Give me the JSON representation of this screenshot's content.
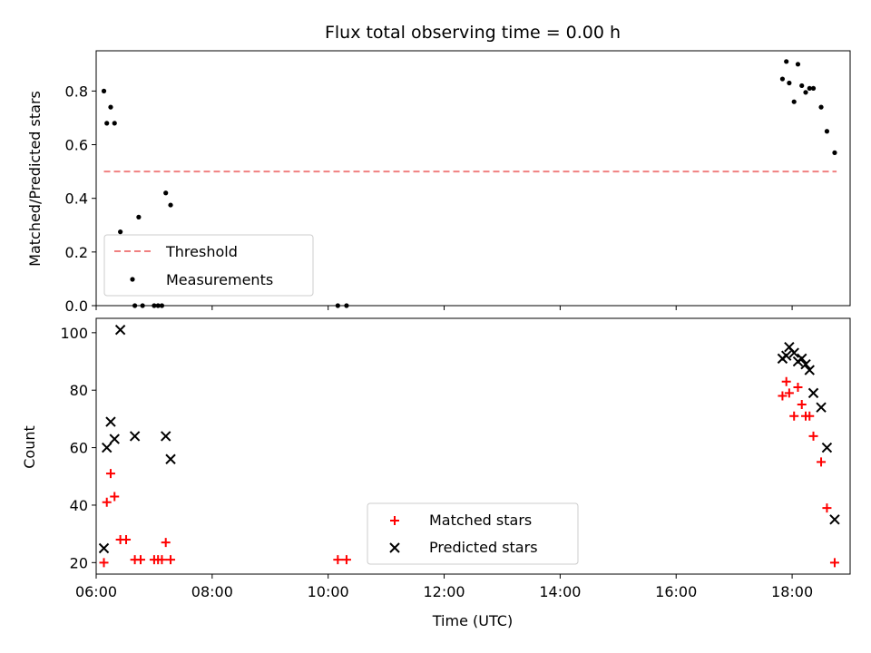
{
  "chart_data": [
    {
      "type": "scatter",
      "title": "Flux total observing time = 0.00 h",
      "xlabel": "",
      "ylabel": "Matched/Predicted stars",
      "xlim": [
        "06:00",
        "19:00"
      ],
      "ylim": [
        0,
        0.95
      ],
      "yticks": [
        "0.0",
        "0.2",
        "0.4",
        "0.6",
        "0.8"
      ],
      "legend_position": "lower-left",
      "series": [
        {
          "name": "Threshold",
          "style": "dashed-line",
          "color": "#f08080",
          "x": [
            "06:08",
            "18:46"
          ],
          "y": [
            0.5,
            0.5
          ]
        },
        {
          "name": "Measurements",
          "style": "dot",
          "color": "#000000",
          "points": [
            [
              "06:08",
              0.8
            ],
            [
              "06:11",
              0.68
            ],
            [
              "06:15",
              0.74
            ],
            [
              "06:19",
              0.68
            ],
            [
              "06:25",
              0.275
            ],
            [
              "06:40",
              0.0
            ],
            [
              "06:44",
              0.33
            ],
            [
              "06:48",
              0.0
            ],
            [
              "07:00",
              0.0
            ],
            [
              "07:04",
              0.0
            ],
            [
              "07:08",
              0.0
            ],
            [
              "07:12",
              0.42
            ],
            [
              "07:17",
              0.375
            ],
            [
              "10:10",
              0.0
            ],
            [
              "10:19",
              0.0
            ],
            [
              "17:50",
              0.845
            ],
            [
              "17:54",
              0.91
            ],
            [
              "17:57",
              0.83
            ],
            [
              "18:02",
              0.76
            ],
            [
              "18:06",
              0.9
            ],
            [
              "18:10",
              0.82
            ],
            [
              "18:14",
              0.795
            ],
            [
              "18:18",
              0.81
            ],
            [
              "18:22",
              0.81
            ],
            [
              "18:30",
              0.74
            ],
            [
              "18:36",
              0.65
            ],
            [
              "18:44",
              0.57
            ]
          ]
        }
      ]
    },
    {
      "type": "scatter",
      "title": "",
      "xlabel": "Time (UTC)",
      "ylabel": "Count",
      "xlim": [
        "06:00",
        "19:00"
      ],
      "ylim": [
        16,
        105
      ],
      "xticks": [
        "06:00",
        "08:00",
        "10:00",
        "12:00",
        "14:00",
        "16:00",
        "18:00"
      ],
      "yticks": [
        "20",
        "40",
        "60",
        "80",
        "100"
      ],
      "legend_position": "lower-center",
      "series": [
        {
          "name": "Matched stars",
          "marker": "plus",
          "color": "#ff0000",
          "points": [
            [
              "06:08",
              20
            ],
            [
              "06:11",
              41
            ],
            [
              "06:15",
              51
            ],
            [
              "06:19",
              43
            ],
            [
              "06:25",
              28
            ],
            [
              "06:31",
              28
            ],
            [
              "06:40",
              21
            ],
            [
              "06:46",
              21
            ],
            [
              "07:00",
              21
            ],
            [
              "07:04",
              21
            ],
            [
              "07:08",
              21
            ],
            [
              "07:12",
              27
            ],
            [
              "07:17",
              21
            ],
            [
              "10:10",
              21
            ],
            [
              "10:19",
              21
            ],
            [
              "17:50",
              78
            ],
            [
              "17:54",
              83
            ],
            [
              "17:57",
              79
            ],
            [
              "18:02",
              71
            ],
            [
              "18:06",
              81
            ],
            [
              "18:10",
              75
            ],
            [
              "18:14",
              71
            ],
            [
              "18:18",
              71
            ],
            [
              "18:22",
              64
            ],
            [
              "18:30",
              55
            ],
            [
              "18:36",
              39
            ],
            [
              "18:44",
              20
            ]
          ]
        },
        {
          "name": "Predicted stars",
          "marker": "x",
          "color": "#000000",
          "points": [
            [
              "06:08",
              25
            ],
            [
              "06:11",
              60
            ],
            [
              "06:15",
              69
            ],
            [
              "06:19",
              63
            ],
            [
              "06:25",
              101
            ],
            [
              "06:40",
              64
            ],
            [
              "07:12",
              64
            ],
            [
              "07:17",
              56
            ],
            [
              "17:50",
              91
            ],
            [
              "17:54",
              92
            ],
            [
              "17:57",
              95
            ],
            [
              "18:02",
              93
            ],
            [
              "18:06",
              90
            ],
            [
              "18:10",
              91
            ],
            [
              "18:14",
              89
            ],
            [
              "18:18",
              87
            ],
            [
              "18:22",
              79
            ],
            [
              "18:30",
              74
            ],
            [
              "18:36",
              60
            ],
            [
              "18:44",
              35
            ]
          ]
        }
      ]
    }
  ]
}
